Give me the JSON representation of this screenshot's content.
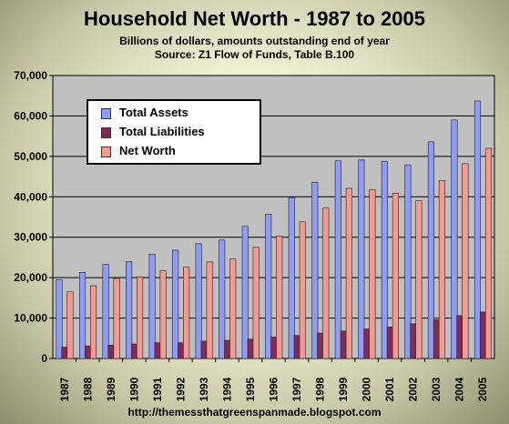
{
  "title": "Household Net Worth - 1987 to 2005",
  "subtitle_line1": "Billions of dollars, amounts outstanding end of year",
  "subtitle_line2": "Source: Z1 Flow of Funds, Table B.100",
  "footer": "http://themessthatgreenspanmade.blogspot.com",
  "colors": {
    "assets": "#8e9cf6",
    "liabilities": "#7c2d58",
    "networth": "#f49a93",
    "plot_bg": "#c0c0c0"
  },
  "chart_data": {
    "type": "bar",
    "title": "Household Net Worth - 1987 to 2005",
    "xlabel": "",
    "ylabel": "",
    "ylim": [
      0,
      70000
    ],
    "yticks": [
      "0",
      "10,000",
      "20,000",
      "30,000",
      "40,000",
      "50,000",
      "60,000",
      "70,000"
    ],
    "grid": true,
    "legend": "top-left",
    "categories": [
      "1987",
      "1988",
      "1989",
      "1990",
      "1991",
      "1992",
      "1993",
      "1994",
      "1995",
      "1996",
      "1997",
      "1998",
      "1999",
      "2000",
      "2001",
      "2002",
      "2003",
      "2004",
      "2005"
    ],
    "series": [
      {
        "name": "Total Assets",
        "values": [
          19500,
          21300,
          23300,
          24000,
          25800,
          26800,
          28400,
          29300,
          32700,
          35700,
          39800,
          43600,
          48900,
          49100,
          48800,
          47900,
          53600,
          59000,
          63700
        ]
      },
      {
        "name": "Total Liabilities",
        "values": [
          2800,
          3100,
          3300,
          3600,
          3900,
          3900,
          4300,
          4500,
          4800,
          5300,
          5700,
          6300,
          6800,
          7300,
          7800,
          8600,
          9600,
          10600,
          11500
        ]
      },
      {
        "name": "Net Worth",
        "values": [
          16500,
          18000,
          19800,
          20200,
          21700,
          22600,
          23900,
          24600,
          27500,
          30300,
          33800,
          37200,
          42100,
          41800,
          40900,
          39000,
          44000,
          48200,
          52000
        ]
      }
    ]
  }
}
